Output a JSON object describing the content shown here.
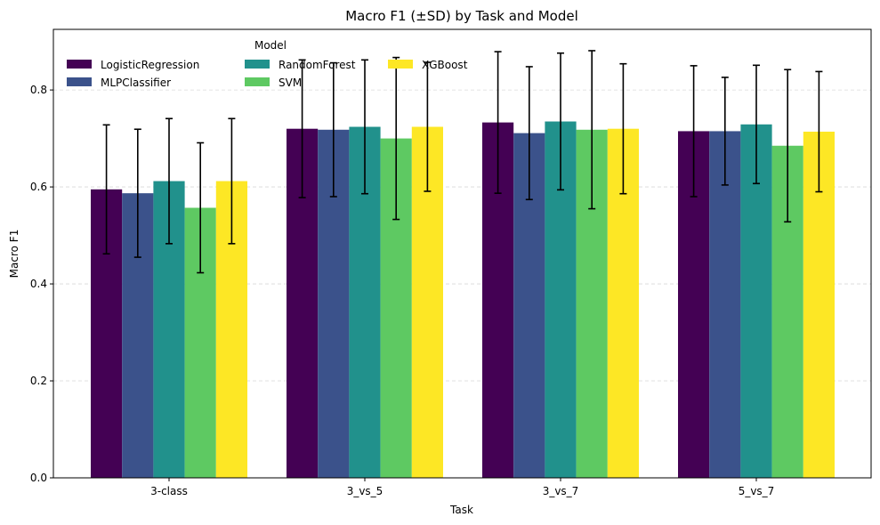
{
  "chart_data": {
    "type": "bar",
    "title": "Macro F1 (±SD) by Task and Model",
    "xlabel": "Task",
    "ylabel": "Macro F1",
    "ylim": [
      0,
      0.925
    ],
    "yticks": [
      "0.0",
      "0.2",
      "0.4",
      "0.6",
      "0.8"
    ],
    "ytick_values": [
      0.0,
      0.2,
      0.4,
      0.6,
      0.8
    ],
    "grid": "y-dashed",
    "legend_title": "Model",
    "legend_position": "top-left",
    "categories": [
      "3-class",
      "3_vs_5",
      "3_vs_7",
      "5_vs_7"
    ],
    "series": [
      {
        "name": "LogisticRegression",
        "color": "#440154",
        "values": [
          0.595,
          0.72,
          0.733,
          0.715
        ],
        "sd": [
          0.133,
          0.142,
          0.146,
          0.135
        ]
      },
      {
        "name": "MLPClassifier",
        "color": "#3b528b",
        "values": [
          0.587,
          0.718,
          0.711,
          0.715
        ],
        "sd": [
          0.132,
          0.138,
          0.137,
          0.111
        ]
      },
      {
        "name": "RandomForest",
        "color": "#21918c",
        "values": [
          0.612,
          0.724,
          0.735,
          0.729
        ],
        "sd": [
          0.129,
          0.138,
          0.141,
          0.122
        ]
      },
      {
        "name": "SVM",
        "color": "#5ec962",
        "values": [
          0.557,
          0.7,
          0.718,
          0.685
        ],
        "sd": [
          0.134,
          0.167,
          0.163,
          0.157
        ]
      },
      {
        "name": "XGBoost",
        "color": "#fde725",
        "values": [
          0.612,
          0.724,
          0.72,
          0.714
        ],
        "sd": [
          0.129,
          0.133,
          0.134,
          0.124
        ]
      }
    ]
  }
}
